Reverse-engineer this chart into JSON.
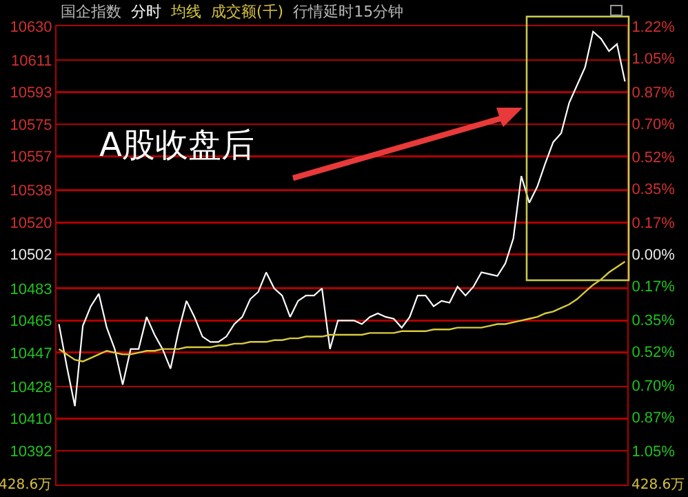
{
  "chart_data": {
    "type": "line",
    "title": "国企指数",
    "categories": [
      null,
      null,
      null,
      null,
      null,
      null,
      null,
      null,
      null,
      null,
      null,
      null,
      null,
      null,
      null,
      null,
      null,
      null,
      null,
      null,
      null,
      null,
      null,
      null,
      null,
      null,
      null,
      null,
      null,
      null,
      null,
      null,
      null,
      null,
      null,
      null,
      null,
      null,
      null,
      null,
      null,
      null,
      null,
      null,
      null,
      null,
      null,
      null,
      null,
      null,
      null,
      null,
      null,
      null,
      null,
      null,
      null,
      null,
      null,
      null,
      null,
      null,
      null,
      null,
      null,
      null,
      null,
      null,
      null,
      null,
      null,
      null
    ],
    "series": [
      {
        "name": "分时",
        "color": "#ffffff",
        "values": [
          10463,
          10439,
          10417,
          10462,
          10473,
          10480,
          10461,
          10449,
          10429,
          10449,
          10449,
          10467,
          10457,
          10449,
          10438,
          10459,
          10476,
          10467,
          10456,
          10453,
          10453,
          10456,
          10463,
          10467,
          10477,
          10481,
          10492,
          10483,
          10479,
          10467,
          10476,
          10479,
          10479,
          10483,
          10449,
          10465,
          10465,
          10465,
          10463,
          10467,
          10469,
          10467,
          10466,
          10461,
          10467,
          10479,
          10479,
          10473,
          10476,
          10475,
          10484,
          10479,
          10484,
          10492,
          10491,
          10490,
          10497,
          10511,
          10546,
          10531,
          10540,
          10553,
          10565,
          10570,
          10587,
          10597,
          10607,
          10627,
          10623,
          10616,
          10620,
          10599
        ]
      },
      {
        "name": "均线",
        "color": "#d8cc3c",
        "values": [
          10449,
          10446,
          10443,
          10442,
          10444,
          10446,
          10448,
          10447,
          10446,
          10446,
          10447,
          10448,
          10448,
          10449,
          10449,
          10449,
          10450,
          10450,
          10450,
          10450,
          10451,
          10451,
          10452,
          10452,
          10453,
          10453,
          10453,
          10454,
          10454,
          10455,
          10455,
          10456,
          10456,
          10456,
          10457,
          10457,
          10457,
          10457,
          10457,
          10458,
          10458,
          10458,
          10458,
          10459,
          10459,
          10459,
          10459,
          10460,
          10460,
          10460,
          10461,
          10461,
          10461,
          10461,
          10462,
          10463,
          10463,
          10464,
          10465,
          10466,
          10467,
          10469,
          10470,
          10472,
          10474,
          10477,
          10481,
          10485,
          10488,
          10492,
          10495,
          10498
        ]
      }
    ],
    "ylim": [
      10373,
      10630
    ],
    "yticks": [
      10630,
      10611,
      10593,
      10575,
      10557,
      10538,
      10520,
      10502,
      10483,
      10465,
      10447,
      10428,
      10410,
      10392
    ],
    "y2lim": [
      -1.23,
      1.22
    ],
    "y2ticks": [
      {
        "value": 1.22,
        "label": "1.22%"
      },
      {
        "value": 1.05,
        "label": "1.05%"
      },
      {
        "value": 0.87,
        "label": "0.87%"
      },
      {
        "value": 0.7,
        "label": "0.70%"
      },
      {
        "value": 0.52,
        "label": "0.52%"
      },
      {
        "value": 0.35,
        "label": "0.35%"
      },
      {
        "value": 0.17,
        "label": "0.17%"
      },
      {
        "value": 0,
        "label": "0.00%"
      },
      {
        "value": -0.17,
        "label": "0.17%"
      },
      {
        "value": -0.35,
        "label": "0.35%"
      },
      {
        "value": -0.52,
        "label": "0.52%"
      },
      {
        "value": -0.7,
        "label": "0.70%"
      },
      {
        "value": -0.87,
        "label": "0.87%"
      },
      {
        "value": -1.05,
        "label": "1.05%"
      }
    ],
    "grid": "y",
    "legend": false,
    "marker": "none",
    "line_style": "solid",
    "annotations": [
      "成交额(千)",
      "行情延时15分钟",
      "A股收盘后",
      "428.6万",
      "428.6万"
    ]
  }
}
